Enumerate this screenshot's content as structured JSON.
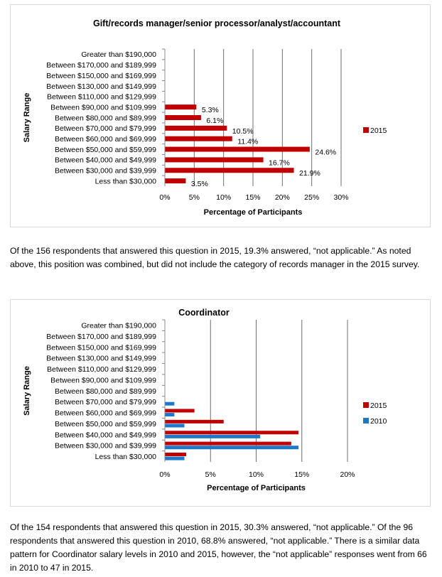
{
  "colors": {
    "s2015": "#c00000",
    "s2010": "#1f77c8",
    "grid": "#6f6f6f",
    "axis": "#888888"
  },
  "text": {
    "para1": "Of the 156 respondents that answered this question in 2015, 19.3% answered, “not applicable.” As noted above, this position was combined, but did not include the category of records manager in the 2015 survey.",
    "para2": "Of the 154 respondents that answered this question in 2015, 30.3% answered, “not applicable.” Of the 96 respondents that answered this question in 2010, 68.8% answered, “not applicable.” There is a similar data pattern for Coordinator salary levels in 2010 and 2015, however, the “not applicable” responses went from 66 in 2010 to 47 in 2015."
  },
  "chart_data": [
    {
      "type": "bar",
      "orientation": "horizontal",
      "title": "Gift/records manager/senior processor/analyst/accountant",
      "xlabel": "Percentage of Participants",
      "ylabel": "Salary Range",
      "categories": [
        "Greater than $190,000",
        "Between $170,000 and $189,999",
        "Between $150,000 and $169,999",
        "Between $130,000 and $149,999",
        "Between $110,000 and $129,999",
        "Between $90,000 and $109,999",
        "Between $80,000 and $89,999",
        "Between $70,000 and $79,999",
        "Between $60,000 and $69,999",
        "Between $50,000 and $59,999",
        "Between $40,000 and $49,999",
        "Between $30,000 and $39,999",
        "Less than $30,000"
      ],
      "xticks": [
        "0%",
        "5%",
        "10%",
        "15%",
        "20%",
        "25%",
        "30%"
      ],
      "xlim": [
        0,
        30
      ],
      "grid": true,
      "legend_position": "right",
      "series": [
        {
          "name": "2015",
          "color": "#c00000",
          "values": [
            0,
            0,
            0,
            0,
            0,
            5.3,
            6.1,
            10.5,
            11.4,
            24.6,
            16.7,
            21.9,
            3.5
          ],
          "data_labels": [
            "",
            "",
            "",
            "",
            "",
            "5.3%",
            "6.1%",
            "10.5%",
            "11.4%",
            "24.6%",
            "16.7%",
            "21.9%",
            "3.5%"
          ]
        }
      ]
    },
    {
      "type": "bar",
      "orientation": "horizontal",
      "title": "Coordinator",
      "xlabel": "Percentage of Participants",
      "ylabel": "Salary Range",
      "categories": [
        "Greater than $190,000",
        "Between $170,000 and $189,999",
        "Between $150,000 and $169,999",
        "Between $130,000 and $149,999",
        "Between $110,000 and $129,999",
        "Between $90,000 and $109,999",
        "Between $80,000 and $89,999",
        "Between $70,000 and $79,999",
        "Between $60,000 and $69,999",
        "Between $50,000 and $59,999",
        "Between $40,000 and $49,999",
        "Between $30,000 and $39,999",
        "Less than $30,000"
      ],
      "xticks": [
        "0%",
        "5%",
        "10%",
        "15%",
        "20%"
      ],
      "xlim": [
        0,
        20
      ],
      "grid": true,
      "legend_position": "right",
      "series": [
        {
          "name": "2015",
          "color": "#c00000",
          "values": [
            0,
            0,
            0,
            0,
            0,
            0,
            0,
            0,
            3.2,
            6.4,
            14.6,
            13.8,
            2.3
          ]
        },
        {
          "name": "2010",
          "color": "#1f77c8",
          "values": [
            0,
            0,
            0,
            0,
            0,
            0,
            0,
            1.0,
            1.0,
            2.1,
            10.4,
            14.6,
            2.1
          ]
        }
      ]
    }
  ]
}
